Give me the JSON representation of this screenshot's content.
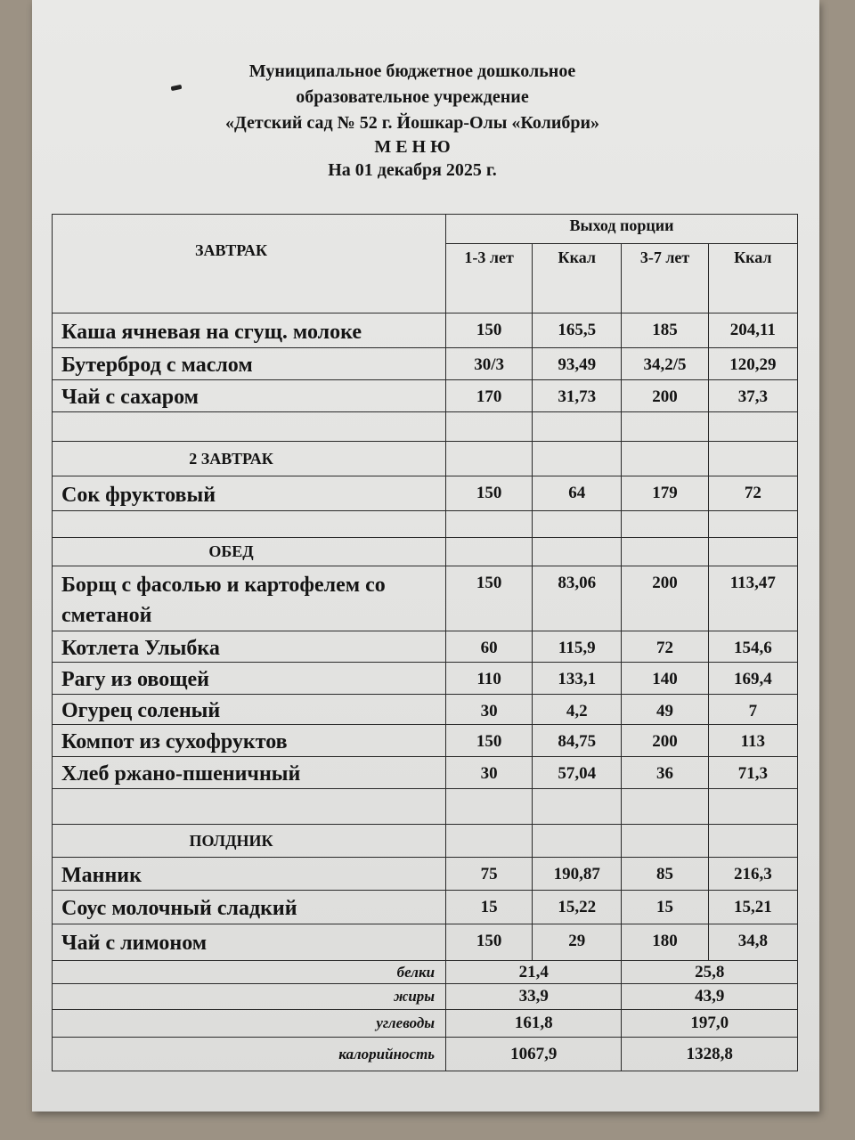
{
  "header": {
    "line1": "Муниципальное бюджетное дошкольное",
    "line2": "образовательное учреждение",
    "line3": "«Детский сад № 52 г. Йошкар-Олы «Колибри»",
    "title": "М Е Н Ю",
    "date": "На 01 декабря 2025 г."
  },
  "table": {
    "group_header": "Выход порции",
    "columns": [
      "1-3 лет",
      "Ккал",
      "3-7 лет",
      "Ккал"
    ],
    "sections": [
      {
        "name": "ЗАВТРАК",
        "rows": [
          {
            "dish": "Каша ячневая на сгущ. молоке",
            "v": [
              "150",
              "165,5",
              "185",
              "204,11"
            ]
          },
          {
            "dish": "Бутерброд с маслом",
            "v": [
              "30/3",
              "93,49",
              "34,2/5",
              "120,29"
            ]
          },
          {
            "dish": "Чай с сахаром",
            "v": [
              "170",
              "31,73",
              "200",
              "37,3"
            ]
          }
        ]
      },
      {
        "name": "2 ЗАВТРАК",
        "rows": [
          {
            "dish": "Сок фруктовый",
            "v": [
              "150",
              "64",
              "179",
              "72"
            ]
          }
        ]
      },
      {
        "name": "ОБЕД",
        "rows": [
          {
            "dish": "Борщ с фасолью и картофелем со сметаной",
            "v": [
              "150",
              "83,06",
              "200",
              "113,47"
            ]
          },
          {
            "dish": "Котлета Улыбка",
            "v": [
              "60",
              "115,9",
              "72",
              "154,6"
            ]
          },
          {
            "dish": "Рагу из овощей",
            "v": [
              "110",
              "133,1",
              "140",
              "169,4"
            ]
          },
          {
            "dish": "Огурец соленый",
            "v": [
              "30",
              "4,2",
              "49",
              "7"
            ]
          },
          {
            "dish": "Компот из сухофруктов",
            "v": [
              "150",
              "84,75",
              "200",
              "113"
            ]
          },
          {
            "dish": "Хлеб ржано-пшеничный",
            "v": [
              "30",
              "57,04",
              "36",
              "71,3"
            ]
          }
        ]
      },
      {
        "name": "ПОЛДНИК",
        "rows": [
          {
            "dish": "Манник",
            "v": [
              "75",
              "190,87",
              "85",
              "216,3"
            ]
          },
          {
            "dish": "Соус молочный сладкий",
            "v": [
              "15",
              "15,22",
              "15",
              "15,21"
            ]
          },
          {
            "dish": "Чай с лимоном",
            "v": [
              "150",
              "29",
              "180",
              "34,8"
            ]
          }
        ]
      }
    ],
    "totals": [
      {
        "label": "белки",
        "a": "21,4",
        "b": "25,8"
      },
      {
        "label": "жиры",
        "a": "33,9",
        "b": "43,9"
      },
      {
        "label": "углеводы",
        "a": "161,8",
        "b": "197,0"
      },
      {
        "label": "калорийность",
        "a": "1067,9",
        "b": "1328,8"
      }
    ]
  }
}
